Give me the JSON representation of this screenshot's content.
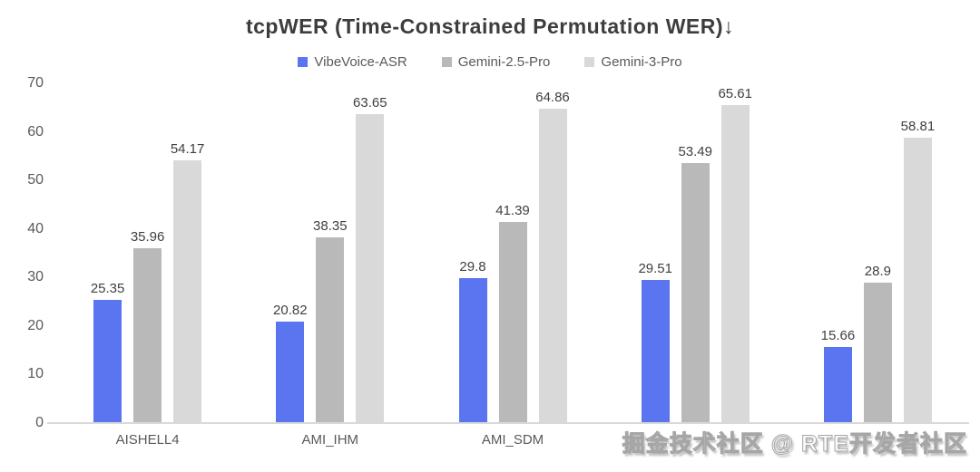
{
  "chart": {
    "title": "tcpWER (Time-Constrained Permutation WER)↓"
  },
  "watermark": {
    "text": "掘金技术社区 @ RTE开发者社区"
  },
  "chart_data": {
    "type": "bar",
    "title": "tcpWER (Time-Constrained Permutation WER)↓",
    "categories": [
      "AISHELL4",
      "AMI_IHM",
      "AMI_SDM",
      "",
      ""
    ],
    "categories_note": "4th and 5th x-axis labels are occluded by the watermark overlay",
    "series": [
      {
        "name": "VibeVoice-ASR",
        "color": "#5b74f0",
        "values": [
          25.35,
          20.82,
          29.8,
          29.51,
          15.66
        ]
      },
      {
        "name": "Gemini-2.5-Pro",
        "color": "#b9b9b9",
        "values": [
          35.96,
          38.35,
          41.39,
          53.49,
          28.9
        ]
      },
      {
        "name": "Gemini-3-Pro",
        "color": "#d9d9d9",
        "values": [
          54.17,
          63.65,
          64.86,
          65.61,
          58.81
        ]
      }
    ],
    "value_labels": true,
    "xlabel": "",
    "ylabel": "",
    "ylim": [
      0,
      70
    ],
    "yticks": [
      0,
      10,
      20,
      30,
      40,
      50,
      60,
      70
    ],
    "grid": false,
    "legend_position": "top"
  }
}
